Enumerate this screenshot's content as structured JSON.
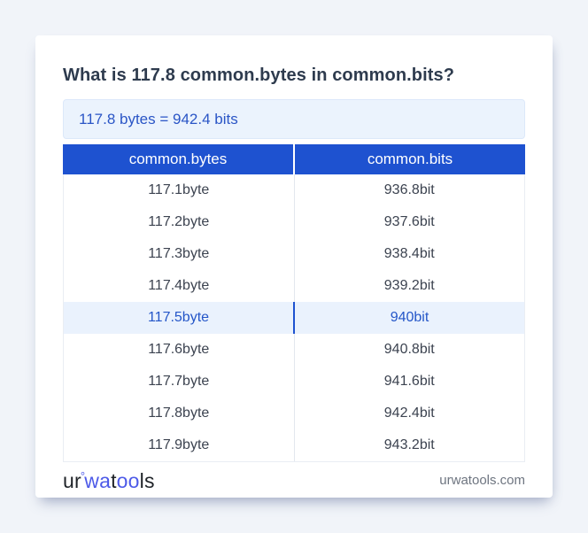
{
  "page": {
    "title": "What is 117.8 common.bytes in common.bits?",
    "result_text": "117.8 bytes = 942.4 bits"
  },
  "table": {
    "headers": [
      "common.bytes",
      "common.bits"
    ],
    "rows": [
      {
        "from": "117.1byte",
        "to": "936.8bit",
        "highlighted": false
      },
      {
        "from": "117.2byte",
        "to": "937.6bit",
        "highlighted": false
      },
      {
        "from": "117.3byte",
        "to": "938.4bit",
        "highlighted": false
      },
      {
        "from": "117.4byte",
        "to": "939.2bit",
        "highlighted": false
      },
      {
        "from": "117.5byte",
        "to": "940bit",
        "highlighted": true
      },
      {
        "from": "117.6byte",
        "to": "940.8bit",
        "highlighted": false
      },
      {
        "from": "117.7byte",
        "to": "941.6bit",
        "highlighted": false
      },
      {
        "from": "117.8byte",
        "to": "942.4bit",
        "highlighted": false
      },
      {
        "from": "117.9byte",
        "to": "943.2bit",
        "highlighted": false
      }
    ]
  },
  "footer": {
    "logo_parts": [
      {
        "text": "ur",
        "style": "dark"
      },
      {
        "text": "°",
        "style": "blue-ring"
      },
      {
        "text": "wa",
        "style": "blue"
      },
      {
        "text": "t",
        "style": "dark"
      },
      {
        "text": "oo",
        "style": "blue"
      },
      {
        "text": "ls",
        "style": "dark"
      }
    ],
    "site": "urwatools.com"
  },
  "colors": {
    "page_background": "#f1f4f9",
    "accent_blue": "#1e52d0",
    "result_box_bg": "#ebf3fd",
    "result_box_border": "#dce8fa",
    "result_text": "#2a55c6",
    "highlight_row_bg": "#eaf2fd",
    "highlight_row_text": "#2456c8",
    "row_text": "#3c4350",
    "title_text": "#2e3b4e",
    "logo_blue": "#4d5ae8",
    "logo_dark": "#1f2328",
    "site_text": "#6e7580"
  }
}
